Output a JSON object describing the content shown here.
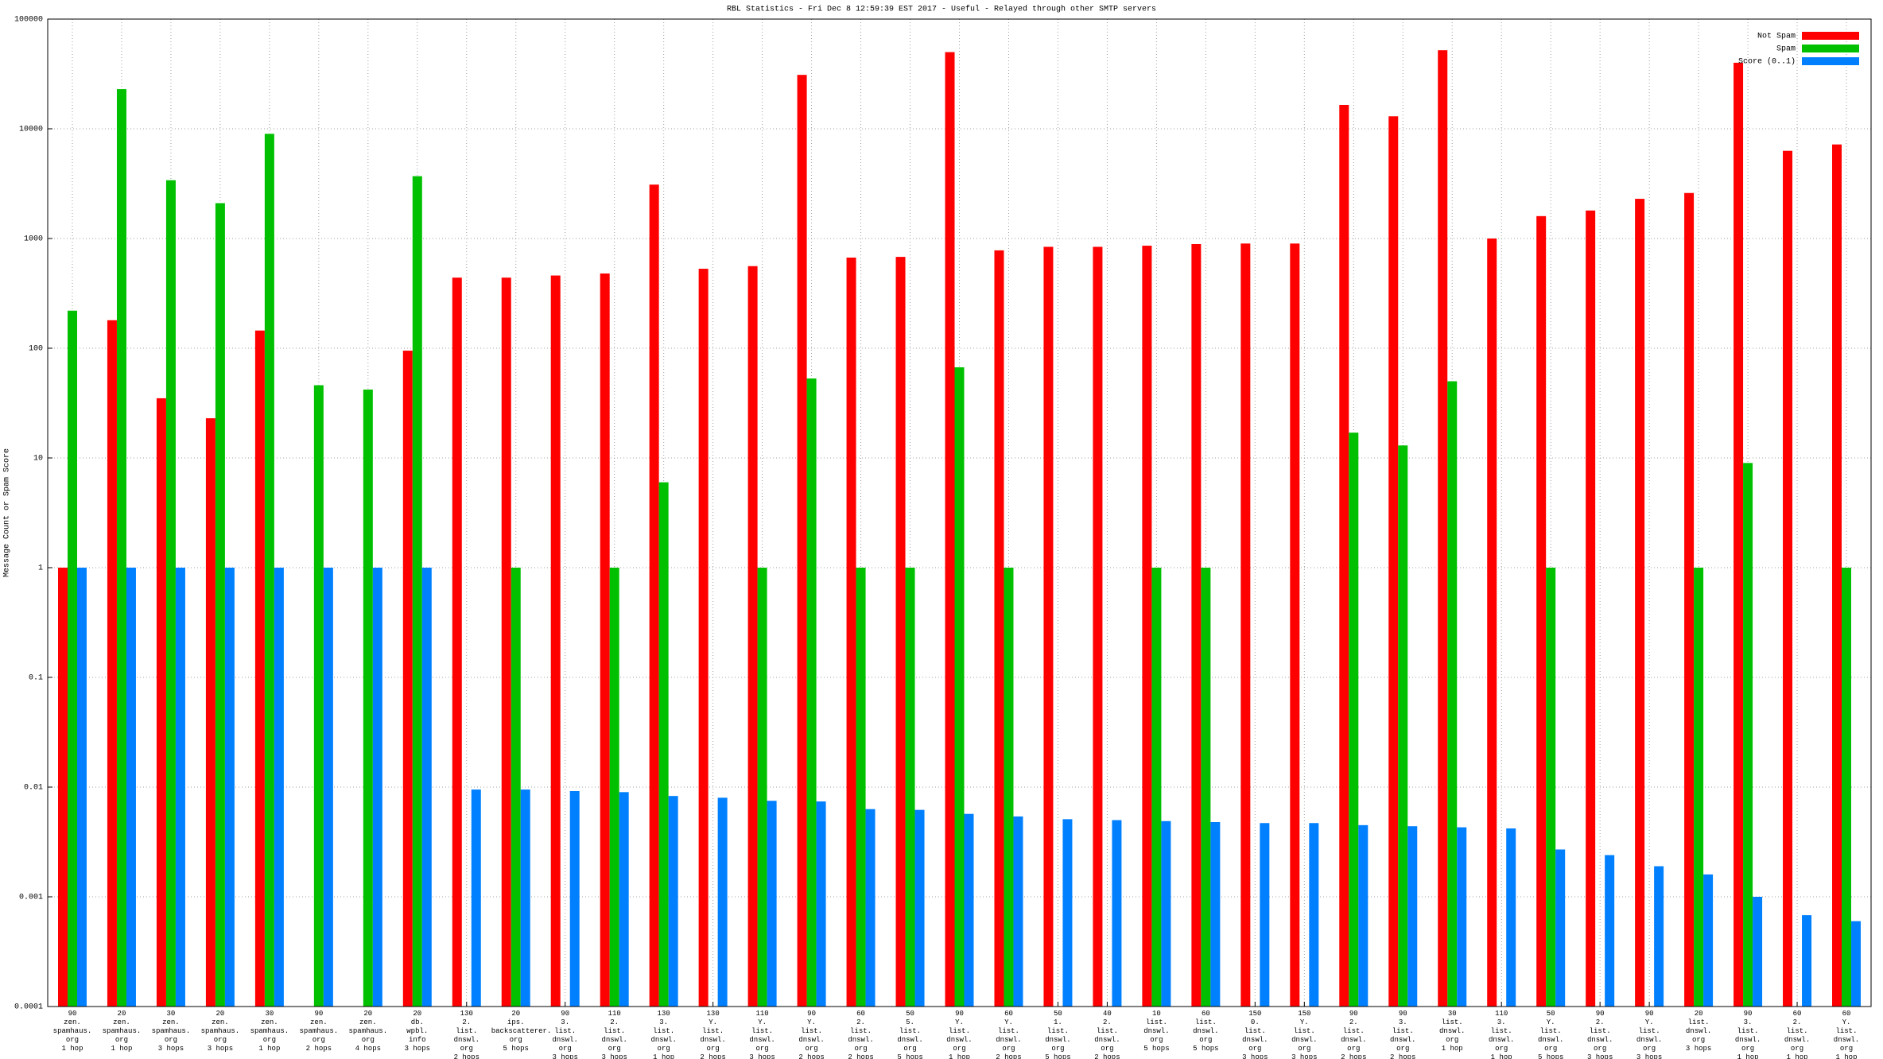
{
  "chart_data": {
    "type": "bar",
    "title": "RBL Statistics - Fri Dec  8 12:59:39 EST 2017 - Useful - Relayed through other SMTP servers",
    "y_label": "Message Count or Spam Score",
    "log_scale": true,
    "grid": true,
    "legend": "top-right",
    "ylim": [
      0.0001,
      100000
    ],
    "yticks": [
      0.0001,
      0.001,
      0.01,
      0.1,
      1,
      10,
      100,
      1000,
      10000,
      100000
    ],
    "categories": [
      "90\nzen.\nspamhaus.\norg\n1 hop",
      "20\nzen.\nspamhaus.\norg\n1 hop",
      "30\nzen.\nspamhaus.\norg\n3 hops",
      "20\nzen.\nspamhaus.\norg\n3 hops",
      "30\nzen.\nspamhaus.\norg\n1 hop",
      "90\nzen.\nspamhaus.\norg\n2 hops",
      "20\nzen.\nspamhaus.\norg\n4 hops",
      "20\ndb.\nwpbl.\ninfo\n3 hops",
      "130\n2.\nlist.\ndnswl.\norg\n2 hops",
      "20\nips.\nbackscatterer.\norg\n5 hops",
      "90\n3.\nlist.\ndnswl.\norg\n3 hops",
      "110\n2.\nlist.\ndnswl.\norg\n3 hops",
      "130\n3.\nlist.\ndnswl.\norg\n1 hop",
      "130\nY.\nlist.\ndnswl.\norg\n2 hops",
      "110\nY.\nlist.\ndnswl.\norg\n3 hops",
      "90\nY.\nlist.\ndnswl.\norg\n2 hops",
      "60\n2.\nlist.\ndnswl.\norg\n2 hops",
      "50\n5.\nlist.\ndnswl.\norg\n5 hops",
      "90\nY.\nlist.\ndnswl.\norg\n1 hop",
      "60\nY.\nlist.\ndnswl.\norg\n2 hops",
      "50\n1.\nlist.\ndnswl.\norg\n5 hops",
      "40\n2.\nlist.\ndnswl.\norg\n2 hops",
      "10\nlist.\ndnswl.\norg\n5 hops",
      "60\nlist.\ndnswl.\norg\n5 hops",
      "150\n0.\nlist.\ndnswl.\norg\n3 hops",
      "150\nY.\nlist.\ndnswl.\norg\n3 hops",
      "90\n2.\nlist.\ndnswl.\norg\n2 hops",
      "90\n3.\nlist.\ndnswl.\norg\n2 hops",
      "30\nlist.\ndnswl.\norg\n1 hop",
      "110\n3.\nlist.\ndnswl.\norg\n1 hop",
      "50\nY.\nlist.\ndnswl.\norg\n5 hops",
      "90\n2.\nlist.\ndnswl.\norg\n3 hops",
      "90\nY.\nlist.\ndnswl.\norg\n3 hops",
      "20\nlist.\ndnswl.\norg\n3 hops",
      "90\n3.\nlist.\ndnswl.\norg\n1 hop",
      "60\n2.\nlist.\ndnswl.\norg\n1 hop",
      "60\nY.\nlist.\ndnswl.\norg\n1 hop"
    ],
    "series": [
      {
        "name": "Not Spam",
        "color": "#ff0000",
        "values": [
          1,
          180,
          35,
          23,
          145,
          null,
          null,
          95,
          440,
          440,
          460,
          480,
          3100,
          530,
          560,
          31000,
          670,
          680,
          50000,
          780,
          840,
          840,
          860,
          890,
          900,
          900,
          16500,
          13000,
          52000,
          1000,
          1600,
          1800,
          2300,
          2600,
          40000,
          6300,
          7200
        ]
      },
      {
        "name": "Spam",
        "color": "#00c000",
        "values": [
          220,
          23000,
          3400,
          2100,
          9000,
          46,
          42,
          3700,
          null,
          1,
          null,
          1,
          6,
          null,
          1,
          53,
          1,
          1,
          67,
          1,
          null,
          null,
          1,
          1,
          null,
          null,
          17,
          13,
          50,
          null,
          1,
          null,
          null,
          1,
          9,
          null,
          1
        ]
      },
      {
        "name": "Score (0..1)",
        "color": "#0080ff",
        "values": [
          1,
          1,
          1,
          1,
          1,
          1,
          1,
          1,
          0.0095,
          0.0095,
          0.0092,
          0.009,
          0.0083,
          0.008,
          0.0075,
          0.0074,
          0.0063,
          0.0062,
          0.0057,
          0.0054,
          0.0051,
          0.005,
          0.0049,
          0.0048,
          0.0047,
          0.0047,
          0.0045,
          0.0044,
          0.0043,
          0.0042,
          0.0027,
          0.0024,
          0.0019,
          0.0016,
          0.001,
          0.00068,
          0.0006
        ]
      }
    ]
  }
}
